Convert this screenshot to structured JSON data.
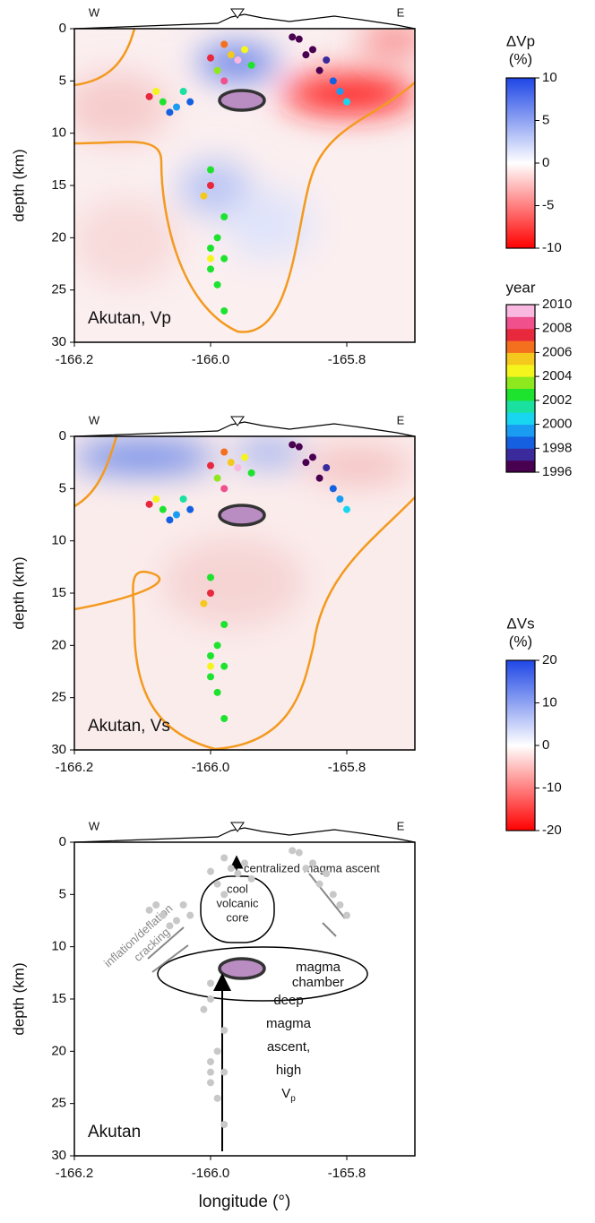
{
  "chart_data": [
    {
      "type": "scatter",
      "label": "Akutan, Vp",
      "ylabel": "depth (km)",
      "west": "W",
      "east": "E",
      "xlim": [
        -166.2,
        -165.7
      ],
      "ylim": [
        0,
        30
      ],
      "xticks": [
        -166.2,
        {
          "value": -166,
          "label": "-166.0"
        },
        -165.8
      ],
      "yticks": [
        0,
        5,
        10,
        15,
        20,
        25,
        30
      ],
      "x": [
        -166.08,
        -166.07,
        -166.06,
        -166.05,
        -166.09,
        -166.04,
        -166.03,
        -165.98,
        -165.97,
        -165.96,
        -165.99,
        -165.95,
        -166.0,
        -165.94,
        -165.98,
        -165.87,
        -165.85,
        -165.83,
        -165.84,
        -165.82,
        -165.86,
        -165.81,
        -165.88,
        -165.8,
        -166.0,
        -166.0,
        -166.01,
        -165.98,
        -165.99,
        -166.0,
        -165.98,
        -166.0,
        -165.99,
        -165.98,
        -166.0
      ],
      "y": [
        6,
        7,
        8,
        7.5,
        6.5,
        6,
        7,
        1.5,
        2.5,
        3,
        4,
        2,
        2.8,
        3.5,
        5,
        1,
        2,
        3,
        4,
        5,
        2.5,
        6,
        0.8,
        7,
        13.5,
        15,
        16,
        18,
        20,
        21,
        22,
        23,
        24.5,
        27,
        22
      ],
      "year": [
        2004,
        2002,
        1998,
        1999,
        2007,
        2001,
        1998,
        2006,
        2005,
        2009,
        2003,
        2004,
        2007,
        2002,
        2008,
        1996,
        1996,
        1997,
        1996,
        1998,
        1996,
        1999,
        1996,
        2000,
        2002,
        2007,
        2005,
        2002,
        2002,
        2002,
        2002,
        2002,
        2002,
        2002,
        2004
      ]
    },
    {
      "type": "scatter",
      "label": "Akutan, Vs",
      "ylabel": "depth (km)",
      "west": "W",
      "east": "E",
      "xlim": [
        -166.2,
        -165.7
      ],
      "ylim": [
        0,
        30
      ],
      "xticks": [
        -166.2,
        {
          "value": -166,
          "label": "-166.0"
        },
        -165.8
      ],
      "yticks": [
        0,
        5,
        10,
        15,
        20,
        25,
        30
      ],
      "x": [
        -166.08,
        -166.07,
        -166.06,
        -166.05,
        -166.09,
        -166.04,
        -166.03,
        -165.98,
        -165.97,
        -165.96,
        -165.99,
        -165.95,
        -166.0,
        -165.94,
        -165.98,
        -165.87,
        -165.85,
        -165.83,
        -165.84,
        -165.82,
        -165.86,
        -165.81,
        -165.88,
        -165.8,
        -166.0,
        -166.0,
        -166.01,
        -165.98,
        -165.99,
        -166.0,
        -165.98,
        -166.0,
        -165.99,
        -165.98,
        -166.0
      ],
      "y": [
        6,
        7,
        8,
        7.5,
        6.5,
        6,
        7,
        1.5,
        2.5,
        3,
        4,
        2,
        2.8,
        3.5,
        5,
        1,
        2,
        3,
        4,
        5,
        2.5,
        6,
        0.8,
        7,
        13.5,
        15,
        16,
        18,
        20,
        21,
        22,
        23,
        24.5,
        27,
        22
      ],
      "year": [
        2004,
        2002,
        1998,
        1999,
        2007,
        2001,
        1998,
        2006,
        2005,
        2009,
        2003,
        2004,
        2007,
        2002,
        2008,
        1996,
        1996,
        1997,
        1996,
        1998,
        1996,
        1999,
        1996,
        2000,
        2002,
        2007,
        2005,
        2002,
        2002,
        2002,
        2002,
        2002,
        2002,
        2002,
        2004
      ]
    },
    {
      "type": "scatter",
      "label": "Akutan",
      "ylabel": "depth (km)",
      "xlabel": "longitude (°)",
      "west": "W",
      "east": "E",
      "color": "#c8c8c8",
      "xlim": [
        -166.2,
        -165.7
      ],
      "ylim": [
        0,
        30
      ],
      "xticks": [
        -166.2,
        {
          "value": -166,
          "label": "-166.0"
        },
        -165.8
      ],
      "yticks": [
        0,
        5,
        10,
        15,
        20,
        25,
        30
      ],
      "x": [
        -166.08,
        -166.07,
        -166.06,
        -166.05,
        -166.09,
        -166.04,
        -166.03,
        -165.98,
        -165.97,
        -165.96,
        -165.99,
        -165.95,
        -166.0,
        -165.94,
        -165.98,
        -165.87,
        -165.85,
        -165.83,
        -165.84,
        -165.82,
        -165.86,
        -165.81,
        -165.88,
        -165.8,
        -166.0,
        -166.0,
        -166.01,
        -165.98,
        -165.99,
        -166.0,
        -165.98,
        -166.0,
        -165.99,
        -165.98,
        -166.0
      ],
      "y": [
        6,
        7,
        8,
        7.5,
        6.5,
        6,
        7,
        1.5,
        2.5,
        3,
        4,
        2,
        2.8,
        3.5,
        5,
        1,
        2,
        3,
        4,
        5,
        2.5,
        6,
        0.8,
        7,
        13.5,
        15,
        16,
        18,
        20,
        21,
        22,
        23,
        24.5,
        27,
        22
      ],
      "annotations": [
        "centralized magma ascent",
        "cool",
        "volcanic",
        "core",
        "magma",
        "chamber",
        "inflation/deflation",
        "cracking",
        "deep",
        "magma",
        "ascent,",
        "high",
        "V",
        "p"
      ]
    },
    {
      "type": "colorbar",
      "title": "ΔVp",
      "unit": "(%)",
      "zlim": [
        -10,
        10
      ],
      "ticks": [
        10,
        5,
        0,
        -5,
        -10
      ],
      "colors": [
        "#ff0000",
        "#ffffff",
        "#1e46e6"
      ]
    },
    {
      "type": "colorbar",
      "title": "year",
      "zlim": [
        1996,
        2010
      ],
      "ticks": [
        2010,
        2008,
        2006,
        2004,
        2002,
        2000,
        1998,
        1996
      ],
      "stepped": true,
      "colors": [
        "#4a0050",
        "#3b2a9c",
        "#1560e0",
        "#1a9cf2",
        "#19d6f0",
        "#1ae0a0",
        "#1ee32e",
        "#8ee81e",
        "#f5f51e",
        "#f5c81e",
        "#f5701e",
        "#e8283c",
        "#f0508c",
        "#f8b8e0"
      ]
    },
    {
      "type": "colorbar",
      "title": "ΔVs",
      "unit": "(%)",
      "zlim": [
        -20,
        20
      ],
      "ticks": [
        20,
        10,
        0,
        -10,
        -20
      ],
      "colors": [
        "#ff0000",
        "#ffffff",
        "#1e46e6"
      ]
    }
  ]
}
